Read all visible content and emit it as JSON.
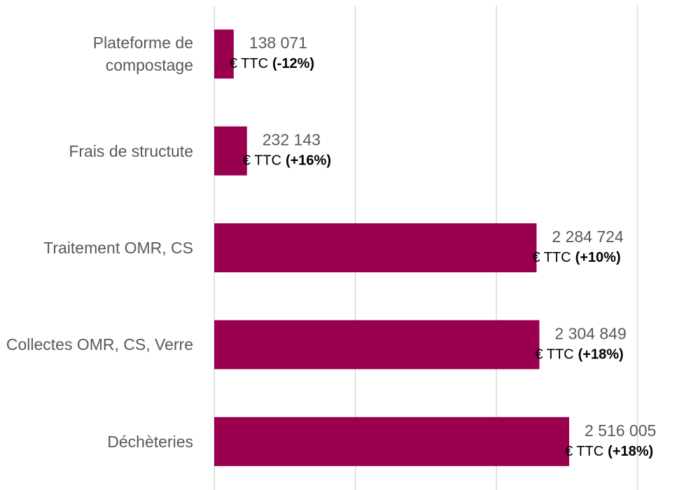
{
  "chart_data": {
    "type": "hbar",
    "categories": [
      "Plateforme de compostage",
      "Frais de structute",
      "Traitement OMR, CS",
      "Collectes OMR, CS, Verre",
      "Déchèteries"
    ],
    "values": [
      138071,
      232143,
      2284724,
      2304849,
      2516005
    ],
    "value_labels": [
      "138 071",
      "232 143",
      "2 284 724",
      "2 304 849",
      "2 516 005"
    ],
    "unit": "€ TTC",
    "changes": [
      "(-12%)",
      "(+16%)",
      "(+10%)",
      "(+18%)",
      "(+18%)"
    ],
    "color": "#99004f",
    "xlim": [
      0,
      3330000
    ],
    "xticks": [
      0,
      1000000,
      2000000,
      3000000
    ],
    "grid": true
  }
}
